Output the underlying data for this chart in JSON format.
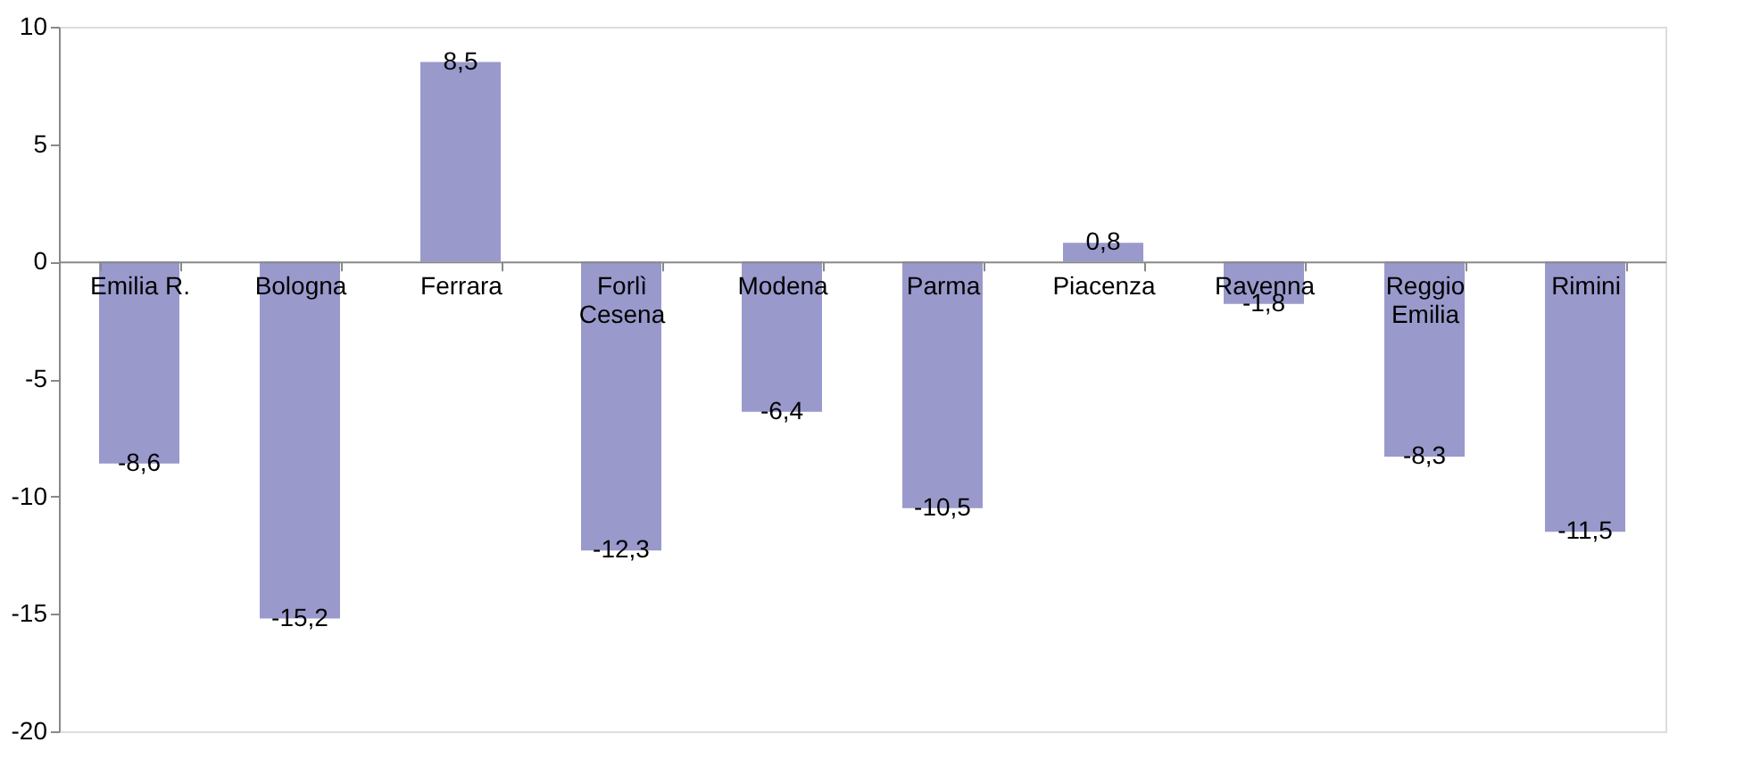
{
  "chart_data": {
    "type": "bar",
    "categories": [
      "Emilia R.",
      "Bologna",
      "Ferrara",
      "Forlì Cesena",
      "Modena",
      "Parma",
      "Piacenza",
      "Ravenna",
      "Reggio Emilia",
      "Rimini"
    ],
    "values": [
      -8.6,
      -15.2,
      8.5,
      -12.3,
      -6.4,
      -10.5,
      0.8,
      -1.8,
      -8.3,
      -11.5
    ],
    "value_labels": [
      "-8,6",
      "-15,2",
      "8,5",
      "-12,3",
      "-6,4",
      "-10,5",
      "0,8",
      "-1,8",
      "-8,3",
      "-11,5"
    ],
    "color": "#9999cc",
    "ylim": [
      -20,
      10
    ],
    "yticks": [
      -20,
      -15,
      -10,
      -5,
      0,
      5,
      10
    ],
    "grid": false
  }
}
